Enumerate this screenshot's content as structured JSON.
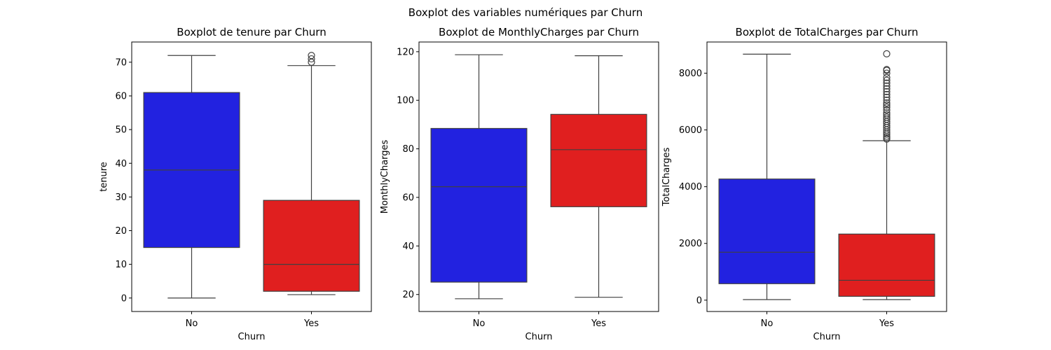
{
  "figure": {
    "suptitle": "Boxplot des variables numériques par Churn"
  },
  "chart_data": [
    {
      "type": "boxplot",
      "title": "Boxplot de tenure par Churn",
      "xlabel": "Churn",
      "ylabel": "tenure",
      "categories": [
        "No",
        "Yes"
      ],
      "colors": [
        "#2222e0",
        "#e01f1f"
      ],
      "ylim": [
        -4,
        76
      ],
      "yticks": [
        0,
        10,
        20,
        30,
        40,
        50,
        60,
        70
      ],
      "boxes": [
        {
          "min": 0,
          "q1": 15,
          "median": 38,
          "q3": 61,
          "max": 72,
          "outliers": []
        },
        {
          "min": 1,
          "q1": 2,
          "median": 10,
          "q3": 29,
          "max": 69,
          "outliers": [
            70,
            71,
            72
          ]
        }
      ]
    },
    {
      "type": "boxplot",
      "title": "Boxplot de MonthlyCharges par Churn",
      "xlabel": "Churn",
      "ylabel": "MonthlyCharges",
      "categories": [
        "No",
        "Yes"
      ],
      "colors": [
        "#2222e0",
        "#e01f1f"
      ],
      "ylim": [
        13,
        124
      ],
      "yticks": [
        20,
        40,
        60,
        80,
        100,
        120
      ],
      "boxes": [
        {
          "min": 18.25,
          "q1": 25.1,
          "median": 64.4,
          "q3": 88.4,
          "max": 118.75,
          "outliers": []
        },
        {
          "min": 18.85,
          "q1": 56.15,
          "median": 79.65,
          "q3": 94.2,
          "max": 118.35,
          "outliers": []
        }
      ]
    },
    {
      "type": "boxplot",
      "title": "Boxplot de TotalCharges par Churn",
      "xlabel": "Churn",
      "ylabel": "TotalCharges",
      "categories": [
        "No",
        "Yes"
      ],
      "colors": [
        "#2222e0",
        "#e01f1f"
      ],
      "ylim": [
        -400,
        9100
      ],
      "yticks": [
        0,
        2000,
        4000,
        6000,
        8000
      ],
      "boxes": [
        {
          "min": 18.8,
          "q1": 580,
          "median": 1690,
          "q3": 4270,
          "max": 8672,
          "outliers": []
        },
        {
          "min": 18.85,
          "q1": 135,
          "median": 700,
          "q3": 2330,
          "max": 5620,
          "outliers": [
            5680,
            5730,
            5780,
            5850,
            5920,
            6000,
            6080,
            6150,
            6230,
            6300,
            6380,
            6450,
            6530,
            6600,
            6700,
            6800,
            6880,
            6950,
            7050,
            7150,
            7250,
            7350,
            7450,
            7550,
            7650,
            7750,
            7850,
            8000,
            8100,
            8130,
            8684
          ]
        }
      ]
    }
  ]
}
